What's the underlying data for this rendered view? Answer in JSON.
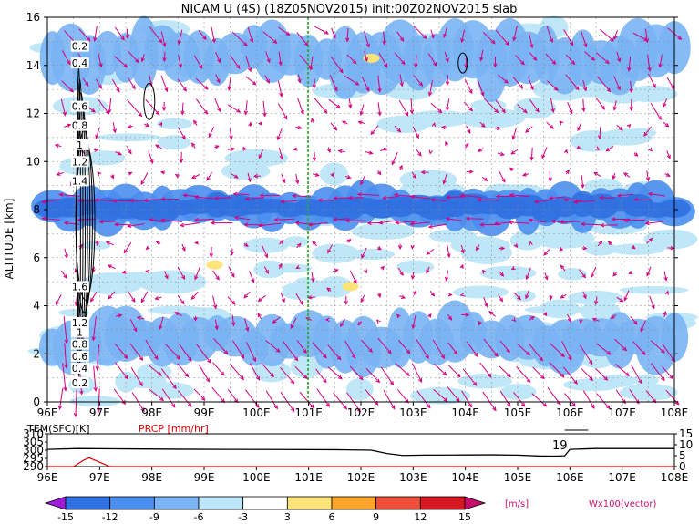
{
  "chart_data": [
    {
      "type": "heatmap",
      "title": "NICAM U (4S) (18Z05NOV2015) init:00Z02NOV2015 slab",
      "ylabel": "ALTITUDE [km]",
      "xlim": [
        96,
        108
      ],
      "ylim": [
        0,
        16
      ],
      "x_ticks": [
        "96E",
        "97E",
        "98E",
        "99E",
        "100E",
        "101E",
        "102E",
        "103E",
        "104E",
        "105E",
        "106E",
        "107E",
        "108E"
      ],
      "y_ticks": [
        "0",
        "2",
        "4",
        "6",
        "8",
        "10",
        "12",
        "14",
        "16"
      ],
      "grid": true,
      "reference_line_lon": 101,
      "shaded_bands": [
        {
          "y_from": 7.2,
          "y_to": 9.0,
          "level": -9
        },
        {
          "y_from": 7.6,
          "y_to": 8.6,
          "level": -12
        },
        {
          "y_from": 13.0,
          "y_to": 15.8,
          "level": -6
        },
        {
          "y_from": 1.4,
          "y_to": 3.8,
          "level": -6
        }
      ],
      "contour_labels_left": [
        "0.2",
        "0.4",
        "0.6",
        "0.8",
        "1",
        "1.2",
        "1.4",
        "1.6",
        "1.2",
        "1",
        "0.8",
        "0.6",
        "0.4",
        "0.2"
      ],
      "positive_patches": [
        {
          "lon": 99.2,
          "alt": 5.7,
          "level": 3
        },
        {
          "lon": 102.2,
          "alt": 14.3,
          "level": 3
        },
        {
          "lon": 101.8,
          "alt": 4.8,
          "level": 3
        }
      ],
      "vector_label": "Wx100(vector)"
    },
    {
      "type": "line",
      "xlim": [
        96,
        108
      ],
      "series": [
        {
          "name": "TEM(SFC)[K]",
          "color": "#000000",
          "x": [
            96.0,
            96.6,
            97.5,
            98.5,
            99.5,
            100.5,
            101.5,
            102.2,
            102.5,
            102.8,
            103.2,
            103.8,
            104.5,
            105.0,
            105.4,
            105.7,
            105.9,
            106.0,
            106.5,
            107.5,
            108.0
          ],
          "y": [
            300.5,
            301.0,
            300.8,
            300.6,
            300.5,
            300.4,
            300.3,
            300.0,
            298.0,
            296.8,
            297.0,
            297.1,
            297.2,
            297.0,
            296.5,
            296.4,
            296.6,
            300.5,
            301.0,
            301.0,
            301.0
          ]
        },
        {
          "name": "PRCP [mm/hr]",
          "color": "#e00000",
          "x": [
            96.0,
            96.5,
            96.7,
            96.8,
            97.0,
            97.2,
            108.0
          ],
          "y": [
            0,
            0,
            3,
            4,
            2,
            0,
            0
          ]
        }
      ],
      "left_ticks": [
        "310",
        "305",
        "300",
        "295",
        "290"
      ],
      "right_ticks": [
        "15",
        "10",
        "5",
        "0"
      ],
      "annotation": "19",
      "x_ticks": [
        "96E",
        "97E",
        "98E",
        "99E",
        "100E",
        "101E",
        "102E",
        "103E",
        "104E",
        "105E",
        "106E",
        "107E",
        "108E"
      ]
    }
  ],
  "colorbar": {
    "labels": [
      "-15",
      "-12",
      "-9",
      "-6",
      "-3",
      "3",
      "6",
      "9",
      "12",
      "15"
    ],
    "colors": [
      "#a21cdc",
      "#3070e0",
      "#4a8ef0",
      "#7ab4f4",
      "#bde6f8",
      "#ffffff",
      "#fce47a",
      "#fca52a",
      "#f0503a",
      "#d61820",
      "#c80d6c"
    ],
    "unit": "[m/s]"
  },
  "colors": {
    "vector": "#d4007f",
    "reference_line": "#22aa22",
    "shade_light": "#bde6f8",
    "shade_mid": "#7ab4f4",
    "shade_dark": "#4a8ef0",
    "shade_darker": "#3070e0",
    "shade_yellow": "#fce47a"
  }
}
